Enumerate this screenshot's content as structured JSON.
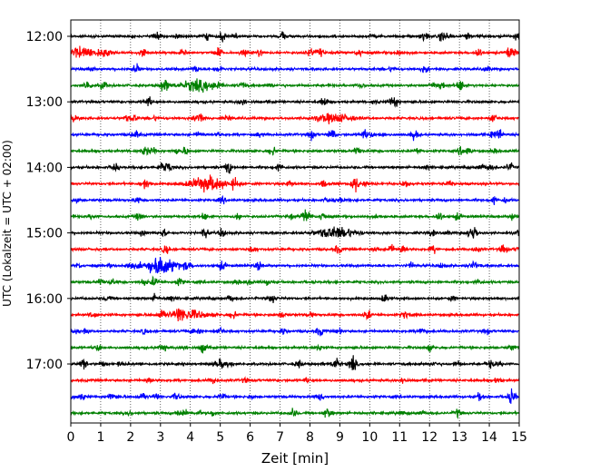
{
  "chart_data": {
    "type": "line",
    "xlabel": "Zeit  [min]",
    "ylabel": "UTC (Lokalzeit = UTC + 02:00)",
    "xlim": [
      0,
      15
    ],
    "x_ticks": [
      "0",
      "1",
      "2",
      "3",
      "4",
      "5",
      "6",
      "7",
      "8",
      "9",
      "10",
      "11",
      "12",
      "13",
      "14",
      "15"
    ],
    "y_tick_labels": [
      "12:00",
      "13:00",
      "14:00",
      "15:00",
      "16:00",
      "17:00"
    ],
    "trace_interval_min": 15,
    "trace_start": "12:00",
    "trace_count": 24,
    "trace_colors": [
      "#000000",
      "#ff0000",
      "#0000ff",
      "#008000"
    ],
    "grid_x": true,
    "events": [
      {
        "trace": 9,
        "minute": 4.6,
        "amplitude": 1.0
      },
      {
        "trace": 14,
        "minute": 3.0,
        "amplitude": 1.0
      },
      {
        "trace": 12,
        "minute": 8.9,
        "amplitude": 0.8
      },
      {
        "trace": 3,
        "minute": 4.2,
        "amplitude": 0.6
      },
      {
        "trace": 5,
        "minute": 8.8,
        "amplitude": 0.6
      },
      {
        "trace": 17,
        "minute": 3.9,
        "amplitude": 0.7
      },
      {
        "trace": 1,
        "minute": 0.4,
        "amplitude": 0.7
      }
    ]
  }
}
